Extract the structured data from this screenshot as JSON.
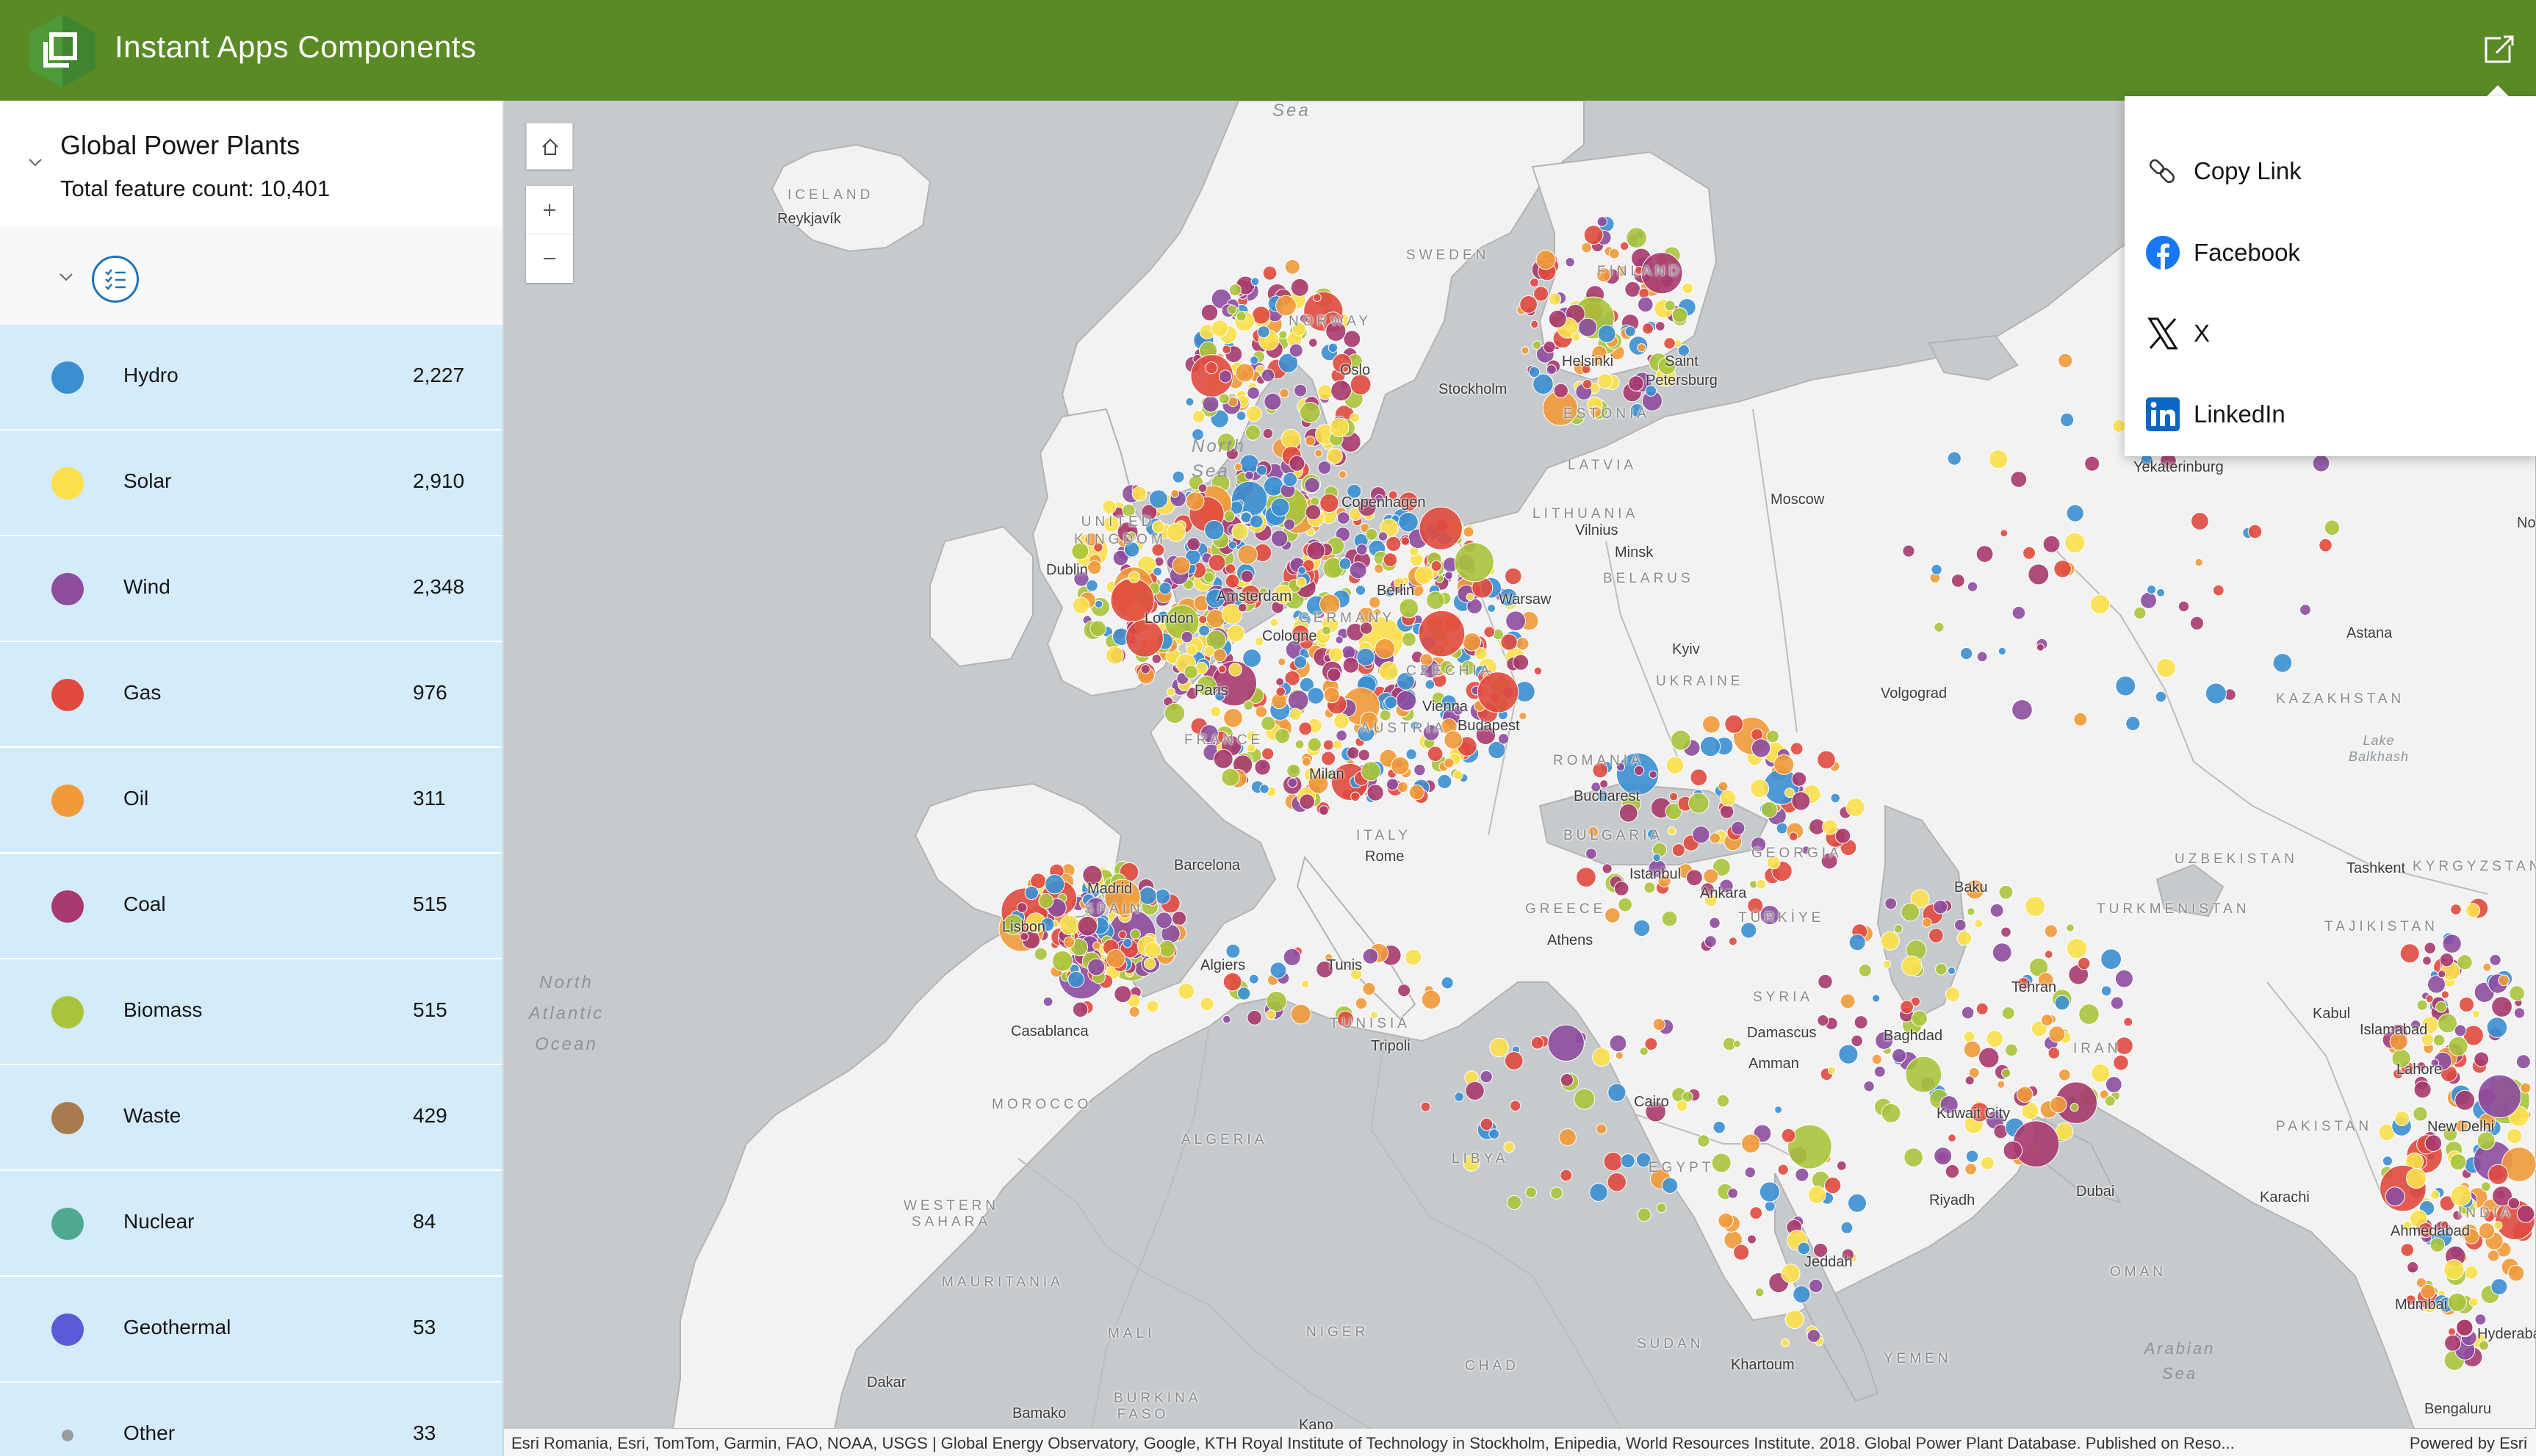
{
  "app": {
    "title": "Instant Apps Components",
    "accent": "#5a8a26"
  },
  "legend": {
    "layer_title": "Global Power Plants",
    "feature_count": "Total feature count: 10,401",
    "row_bg": "#d4ebfb",
    "items": [
      {
        "label": "Hydro",
        "count": "2,227",
        "color": "#3b8fd1"
      },
      {
        "label": "Solar",
        "count": "2,910",
        "color": "#fbe04c"
      },
      {
        "label": "Wind",
        "count": "2,348",
        "color": "#8d4c9e"
      },
      {
        "label": "Gas",
        "count": "976",
        "color": "#e04a3f"
      },
      {
        "label": "Oil",
        "count": "311",
        "color": "#f19a3a"
      },
      {
        "label": "Coal",
        "count": "515",
        "color": "#a73a6e"
      },
      {
        "label": "Biomass",
        "count": "515",
        "color": "#a9c43c"
      },
      {
        "label": "Waste",
        "count": "429",
        "color": "#a87b4f"
      },
      {
        "label": "Nuclear",
        "count": "84",
        "color": "#4fa98f"
      },
      {
        "label": "Geothermal",
        "count": "53",
        "color": "#5a5ad6"
      },
      {
        "label": "Other",
        "count": "33",
        "color": "#9c9c9c"
      }
    ]
  },
  "share": {
    "items": [
      {
        "label": "Copy Link",
        "icon": "link-icon"
      },
      {
        "label": "Facebook",
        "icon": "facebook-icon"
      },
      {
        "label": "X",
        "icon": "x-icon"
      },
      {
        "label": "LinkedIn",
        "icon": "linkedin-icon"
      }
    ]
  },
  "map": {
    "labels": {
      "iceland": "ICELAND",
      "reykjavik": "Reykjavík",
      "sea_top": "Sea",
      "north_sea": "North Sea",
      "norway": "NORWAY",
      "sweden": "SWEDEN",
      "finland": "FINLAND",
      "oslo": "Oslo",
      "stockholm": "Stockholm",
      "helsinki": "Helsinki",
      "saint_petersburg": "Saint Petersburg",
      "estonia": "ESTONIA",
      "latvia": "LATVIA",
      "lithuania": "LITHUANIA",
      "vilnius": "Vilnius",
      "minsk": "Minsk",
      "belarus": "BELARUS",
      "copenhagen": "Copenhagen",
      "moscow": "Moscow",
      "yekaterinburg": "Yekaterinburg",
      "united_kingdom": "UNITED KINGDOM",
      "dublin": "Dublin",
      "london": "London",
      "amsterdam": "Amsterdam",
      "berlin": "Berlin",
      "germany": "GERMANY",
      "cologne": "Cologne",
      "warsaw": "Warsaw",
      "kyiv": "Kyiv",
      "ukraine": "UKRAINE",
      "paris": "Paris",
      "france": "FRANCE",
      "czechia": "CZECHIA",
      "vienna": "Vienna",
      "austria": "AUSTRIA",
      "budapest": "Budapest",
      "romania": "ROMANIA",
      "bucharest": "Bucharest",
      "bulgaria": "BULGARIA",
      "volgograd": "Volgograd",
      "kazakhstan": "KAZAKHSTAN",
      "astana": "Astana",
      "lake_balkhash": "Lake Balkhash",
      "milan": "Milan",
      "italy": "ITALY",
      "rome": "Rome",
      "barcelona": "Barcelona",
      "madrid": "Madrid",
      "spain": "SPAIN",
      "lisbon": "Lisbon",
      "georgia": "GEORGIA",
      "istanbul": "Istanbul",
      "ankara": "Ankara",
      "turkiye": "TÜRKİYE",
      "greece": "GREECE",
      "athens": "Athens",
      "baku": "Baku",
      "uzbekistan": "UZBEKISTAN",
      "tashkent": "Tashkent",
      "kyrgyzstan": "KYRGYZSTAN",
      "tajikistan": "TAJIKISTAN",
      "turkmenistan": "TURKMENISTAN",
      "north_atlantic": "North Atlantic Ocean",
      "algiers": "Algiers",
      "tunis": "Tunis",
      "tunisia": "TUNISIA",
      "tripoli": "Tripoli",
      "syria": "SYRIA",
      "damascus": "Damascus",
      "amman": "Amman",
      "baghdad": "Baghdad",
      "tehran": "Tehran",
      "iran": "IRAN",
      "kabul": "Kabul",
      "islamabad": "Islamabad",
      "lahore": "Lahore",
      "new_delhi": "New Delhi",
      "casablanca": "Casablanca",
      "morocco": "MOROCCO",
      "algeria": "ALGERIA",
      "libya": "LIBYA",
      "egypt": "EGYPT",
      "cairo": "Cairo",
      "kuwait_city": "Kuwait City",
      "pakistan": "PAKISTAN",
      "riyadh": "Riyadh",
      "dubai": "Dubai",
      "karachi": "Karachi",
      "india": "INDIA",
      "ahmedabad": "Ahmedabad",
      "western_sahara": "WESTERN SAHARA",
      "jeddah": "Jeddah",
      "oman": "OMAN",
      "mumbai": "Mumbai",
      "hyderabad": "Hyderabad",
      "mauritania": "MAURITANIA",
      "mali": "MALI",
      "niger": "NIGER",
      "chad": "CHAD",
      "sudan": "SUDAN",
      "khartoum": "Khartoum",
      "yemen": "YEMEN",
      "arabian_sea": "Arabian Sea",
      "dakar": "Dakar",
      "bamako": "Bamako",
      "burkina_faso": "BURKINA FASO",
      "kano": "Kano",
      "bengaluru": "Bengaluru",
      "no": "No"
    },
    "attribution": "Esri Romania, Esri, TomTom, Garmin, FAO, NOAA, USGS | Global Energy Observatory, Google, KTH Royal Institute of Technology in Stockholm, Enipedia, World Resources Institute. 2018. Global Power Plant Database. Published on Reso...",
    "powered_by": "Powered by Esri",
    "colors": {
      "water": "#c7cacd",
      "land": "#f2f2f2",
      "border": "#b3b3b3"
    }
  }
}
